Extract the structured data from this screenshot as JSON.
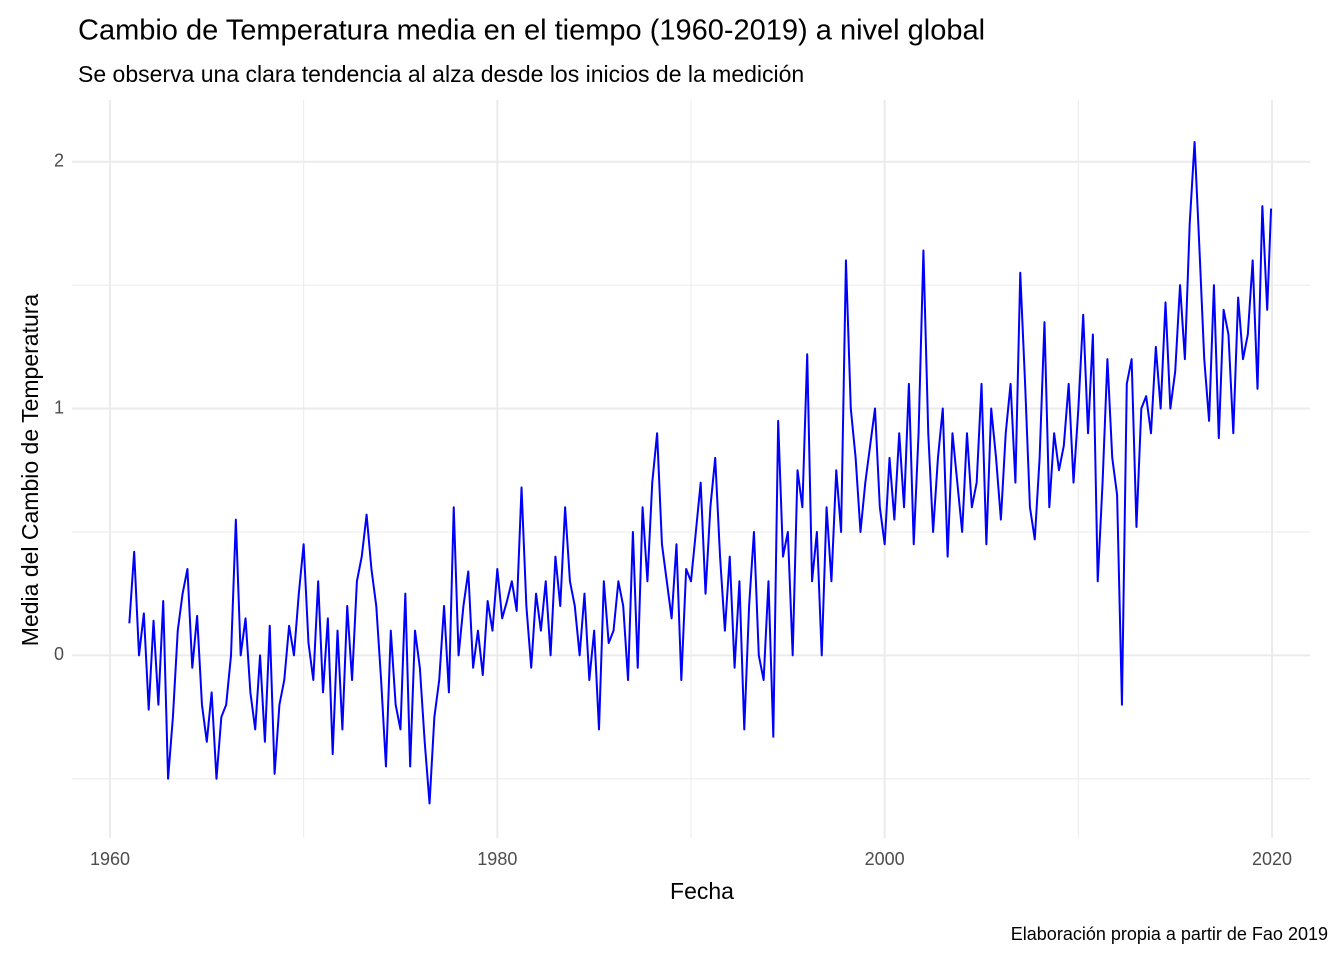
{
  "chart_data": {
    "type": "line",
    "title": "Cambio de Temperatura media en el tiempo (1960-2019) a nivel global",
    "subtitle": "Se observa una clara tendencia al alza desde los inicios de la medición",
    "caption": "Elaboración propia a partir de Fao 2019",
    "x_label": "Fecha",
    "y_label": "Media del Cambio de Temperatura",
    "xlim": [
      1958.04,
      2021.96
    ],
    "ylim": [
      -0.74,
      2.25
    ],
    "xticks": [
      1960,
      1980,
      2000,
      2020
    ],
    "yticks": [
      0,
      1,
      2
    ],
    "minor_xticks": [
      1970,
      1990,
      2010
    ],
    "minor_yticks": [
      -0.5,
      0.5,
      1.5
    ],
    "grid": true,
    "color": "#0000ff",
    "x": [
      1961,
      1961.25,
      1961.5,
      1961.75,
      1962,
      1962.25,
      1962.5,
      1962.75,
      1963,
      1963.25,
      1963.5,
      1963.75,
      1964,
      1964.25,
      1964.5,
      1964.75,
      1965,
      1965.25,
      1965.5,
      1965.75,
      1966,
      1966.25,
      1966.5,
      1966.75,
      1967,
      1967.25,
      1967.5,
      1967.75,
      1968,
      1968.25,
      1968.5,
      1968.75,
      1969,
      1969.25,
      1969.5,
      1969.75,
      1970,
      1970.25,
      1970.5,
      1970.75,
      1971,
      1971.25,
      1971.5,
      1971.75,
      1972,
      1972.25,
      1972.5,
      1972.75,
      1973,
      1973.25,
      1973.5,
      1973.75,
      1974,
      1974.25,
      1974.5,
      1974.75,
      1975,
      1975.25,
      1975.5,
      1975.75,
      1976,
      1976.25,
      1976.5,
      1976.75,
      1977,
      1977.25,
      1977.5,
      1977.75,
      1978,
      1978.25,
      1978.5,
      1978.75,
      1979,
      1979.25,
      1979.5,
      1979.75,
      1980,
      1980.25,
      1980.5,
      1980.75,
      1981,
      1981.25,
      1981.5,
      1981.75,
      1982,
      1982.25,
      1982.5,
      1982.75,
      1983,
      1983.25,
      1983.5,
      1983.75,
      1984,
      1984.25,
      1984.5,
      1984.75,
      1985,
      1985.25,
      1985.5,
      1985.75,
      1986,
      1986.25,
      1986.5,
      1986.75,
      1987,
      1987.25,
      1987.5,
      1987.75,
      1988,
      1988.25,
      1988.5,
      1988.75,
      1989,
      1989.25,
      1989.5,
      1989.75,
      1990,
      1990.25,
      1990.5,
      1990.75,
      1991,
      1991.25,
      1991.5,
      1991.75,
      1992,
      1992.25,
      1992.5,
      1992.75,
      1993,
      1993.25,
      1993.5,
      1993.75,
      1994,
      1994.25,
      1994.5,
      1994.75,
      1995,
      1995.25,
      1995.5,
      1995.75,
      1996,
      1996.25,
      1996.5,
      1996.75,
      1997,
      1997.25,
      1997.5,
      1997.75,
      1998,
      1998.25,
      1998.5,
      1998.75,
      1999,
      1999.25,
      1999.5,
      1999.75,
      2000,
      2000.25,
      2000.5,
      2000.75,
      2001,
      2001.25,
      2001.5,
      2001.75,
      2002,
      2002.25,
      2002.5,
      2002.75,
      2003,
      2003.25,
      2003.5,
      2003.75,
      2004,
      2004.25,
      2004.5,
      2004.75,
      2005,
      2005.25,
      2005.5,
      2005.75,
      2006,
      2006.25,
      2006.5,
      2006.75,
      2007,
      2007.25,
      2007.5,
      2007.75,
      2008,
      2008.25,
      2008.5,
      2008.75,
      2009,
      2009.25,
      2009.5,
      2009.75,
      2010,
      2010.25,
      2010.5,
      2010.75,
      2011,
      2011.25,
      2011.5,
      2011.75,
      2012,
      2012.25,
      2012.5,
      2012.75,
      2013,
      2013.25,
      2013.5,
      2013.75,
      2014,
      2014.25,
      2014.5,
      2014.75,
      2015,
      2015.25,
      2015.5,
      2015.75,
      2016,
      2016.25,
      2016.5,
      2016.75,
      2017,
      2017.25,
      2017.5,
      2017.75,
      2018,
      2018.25,
      2018.5,
      2018.75,
      2019,
      2019.25,
      2019.5,
      2019.75,
      2019.95
    ],
    "values": [
      0.13,
      0.42,
      0.0,
      0.17,
      -0.22,
      0.14,
      -0.2,
      0.22,
      -0.5,
      -0.25,
      0.1,
      0.25,
      0.35,
      -0.05,
      0.16,
      -0.2,
      -0.35,
      -0.15,
      -0.5,
      -0.25,
      -0.2,
      0.0,
      0.55,
      0.0,
      0.15,
      -0.15,
      -0.3,
      0.0,
      -0.35,
      0.12,
      -0.48,
      -0.2,
      -0.1,
      0.12,
      0.0,
      0.25,
      0.45,
      0.05,
      -0.1,
      0.3,
      -0.15,
      0.15,
      -0.4,
      0.1,
      -0.3,
      0.2,
      -0.1,
      0.3,
      0.4,
      0.57,
      0.35,
      0.2,
      -0.1,
      -0.45,
      0.1,
      -0.2,
      -0.3,
      0.25,
      -0.45,
      0.1,
      -0.05,
      -0.35,
      -0.6,
      -0.25,
      -0.1,
      0.2,
      -0.15,
      0.6,
      0.0,
      0.2,
      0.34,
      -0.05,
      0.1,
      -0.08,
      0.22,
      0.1,
      0.35,
      0.15,
      0.22,
      0.3,
      0.18,
      0.68,
      0.2,
      -0.05,
      0.25,
      0.1,
      0.3,
      0.0,
      0.4,
      0.2,
      0.6,
      0.3,
      0.2,
      0.0,
      0.25,
      -0.1,
      0.1,
      -0.3,
      0.3,
      0.05,
      0.1,
      0.3,
      0.2,
      -0.1,
      0.5,
      -0.05,
      0.6,
      0.3,
      0.7,
      0.9,
      0.45,
      0.3,
      0.15,
      0.45,
      -0.1,
      0.35,
      0.3,
      0.5,
      0.7,
      0.25,
      0.6,
      0.8,
      0.4,
      0.1,
      0.4,
      -0.05,
      0.3,
      -0.3,
      0.2,
      0.5,
      0.0,
      -0.1,
      0.3,
      -0.33,
      0.95,
      0.4,
      0.5,
      0.0,
      0.75,
      0.6,
      1.22,
      0.3,
      0.5,
      0.0,
      0.6,
      0.3,
      0.75,
      0.5,
      1.6,
      1.0,
      0.8,
      0.5,
      0.7,
      0.85,
      1.0,
      0.6,
      0.45,
      0.8,
      0.55,
      0.9,
      0.6,
      1.1,
      0.45,
      0.9,
      1.64,
      0.9,
      0.5,
      0.8,
      1.0,
      0.4,
      0.9,
      0.7,
      0.5,
      0.9,
      0.6,
      0.7,
      1.1,
      0.45,
      1.0,
      0.8,
      0.55,
      0.9,
      1.1,
      0.7,
      1.55,
      1.1,
      0.6,
      0.47,
      0.8,
      1.35,
      0.6,
      0.9,
      0.75,
      0.85,
      1.1,
      0.7,
      1.0,
      1.38,
      0.9,
      1.3,
      0.3,
      0.7,
      1.2,
      0.8,
      0.65,
      -0.2,
      1.1,
      1.2,
      0.52,
      1.0,
      1.05,
      0.9,
      1.25,
      1.0,
      1.43,
      1.0,
      1.15,
      1.5,
      1.2,
      1.75,
      2.08,
      1.65,
      1.2,
      0.95,
      1.5,
      0.88,
      1.4,
      1.3,
      0.9,
      1.45,
      1.2,
      1.3,
      1.6,
      1.08,
      1.82,
      1.4,
      1.81
    ]
  }
}
